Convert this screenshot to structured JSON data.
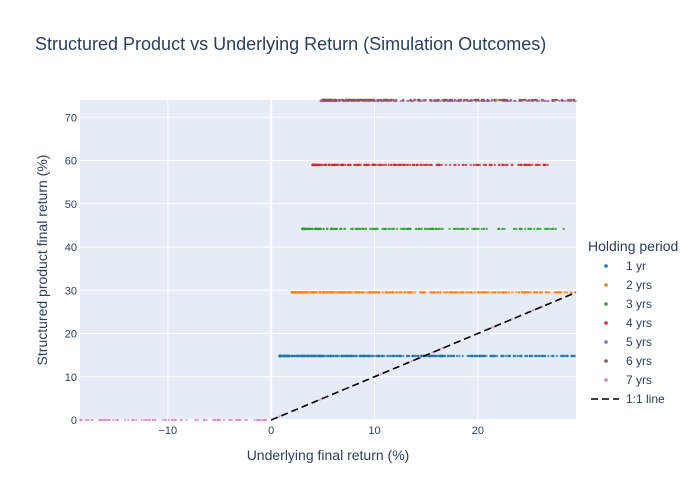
{
  "chart_data": {
    "type": "scatter",
    "title": "Structured Product vs Underlying Return (Simulation Outcomes)",
    "xlabel": "Underlying final return (%)",
    "ylabel": "Structured product final return (%)",
    "xlim": [
      -18.5,
      29.5
    ],
    "ylim": [
      0,
      74
    ],
    "x_ticks": [
      -10,
      0,
      10,
      20
    ],
    "y_ticks": [
      0,
      10,
      20,
      30,
      40,
      50,
      60,
      70
    ],
    "grid": true,
    "legend_title": "Holding period",
    "legend_position": "right",
    "series": [
      {
        "name": "1 yr",
        "color": "#1f77b4",
        "x_range": [
          0.8,
          29.5
        ],
        "y": 14.8,
        "kind": "capped"
      },
      {
        "name": "2 yrs",
        "color": "#ff7f0e",
        "x_range": [
          2.0,
          29.5
        ],
        "y": 29.5,
        "kind": "capped"
      },
      {
        "name": "3 yrs",
        "color": "#2ca02c",
        "x_range": [
          3.0,
          28.5
        ],
        "y": 44.2,
        "kind": "capped"
      },
      {
        "name": "4 yrs",
        "color": "#d62728",
        "x_range": [
          4.0,
          28.0
        ],
        "y": 59.0,
        "kind": "capped"
      },
      {
        "name": "5 yrs",
        "color": "#9467bd",
        "x_range": [
          4.8,
          29.5
        ],
        "y": 73.8,
        "kind": "capped"
      },
      {
        "name": "6 yrs",
        "color": "#8c564b",
        "x_range": [
          5.0,
          29.5
        ],
        "y": 74.0,
        "kind": "capped"
      },
      {
        "name": "7 yrs",
        "color": "#e377c2",
        "x_range": [
          -18.5,
          29.5
        ],
        "kind": "participation"
      }
    ],
    "reference_line": {
      "name": "1:1 line",
      "x": [
        0,
        29.5
      ],
      "y": [
        0,
        29.5
      ],
      "color": "#000000",
      "dash": "dash"
    }
  }
}
